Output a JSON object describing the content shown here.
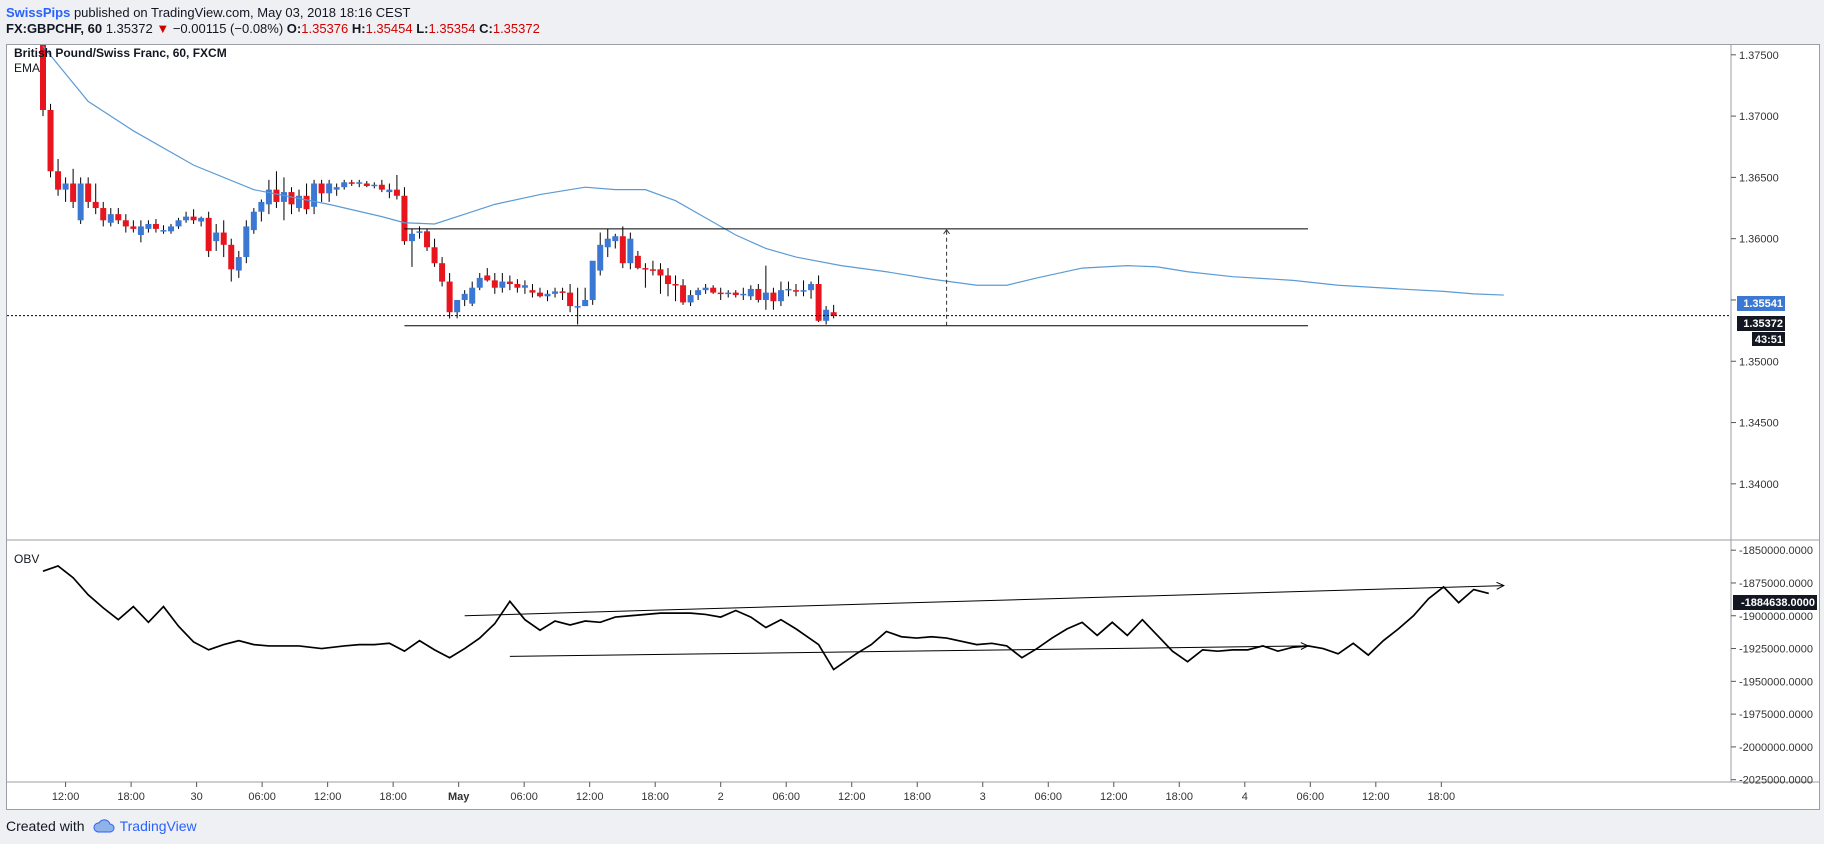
{
  "header": {
    "author": "SwissPips",
    "published": "published on TradingView.com, May 03, 2018 18:16 CEST"
  },
  "quote": {
    "symbol": "FX:GBPCHF, 60",
    "last": "1.35372",
    "change": "−0.00115 (−0.08%)",
    "o_label": "O:",
    "o": "1.35376",
    "h_label": "H:",
    "h": "1.35454",
    "l_label": "L:",
    "l": "1.35354",
    "c_label": "C:",
    "c": "1.35372"
  },
  "chart_title": "British Pound/Swiss Franc, 60, FXCM",
  "ema_label": "EMA",
  "obv_label": "OBV",
  "badges": {
    "ema_value": "1.35541",
    "price_value": "1.35372",
    "countdown": "43:51",
    "obv_value": "-1884638.0000"
  },
  "colors": {
    "up": "#3a78d4",
    "down": "#e8141e",
    "ema": "#5b9bd5",
    "badge_blue": "#3a78d4",
    "badge_dark": "#131722"
  },
  "footer": {
    "created": "Created with",
    "brand": "TradingView"
  },
  "chart_data": [
    {
      "type": "candlestick",
      "title": "British Pound/Swiss Franc, 60, FXCM",
      "ylim": [
        1.3355,
        1.3758
      ],
      "yticks": [
        "1.37500",
        "1.37000",
        "1.36500",
        "1.36000",
        "1.35500",
        "1.35000",
        "1.34500",
        "1.34000"
      ],
      "xticks": [
        "12:00",
        "18:00",
        "30",
        "06:00",
        "12:00",
        "18:00",
        "May",
        "06:00",
        "12:00",
        "18:00",
        "2",
        "06:00",
        "12:00",
        "18:00",
        "3",
        "06:00",
        "12:00",
        "18:00",
        "4",
        "06:00",
        "12:00",
        "18:00"
      ],
      "candles": [
        [
          1.3775,
          1.378,
          1.37,
          1.3705
        ],
        [
          1.3705,
          1.371,
          1.365,
          1.3655
        ],
        [
          1.3655,
          1.3665,
          1.3635,
          1.364
        ],
        [
          1.364,
          1.365,
          1.363,
          1.3645
        ],
        [
          1.3645,
          1.3657,
          1.3625,
          1.363
        ],
        [
          1.3615,
          1.365,
          1.3612,
          1.3645
        ],
        [
          1.3645,
          1.365,
          1.3625,
          1.363
        ],
        [
          1.363,
          1.3645,
          1.362,
          1.3625
        ],
        [
          1.3625,
          1.363,
          1.361,
          1.3615
        ],
        [
          1.3613,
          1.3625,
          1.361,
          1.362
        ],
        [
          1.362,
          1.3625,
          1.3612,
          1.3615
        ],
        [
          1.3615,
          1.362,
          1.3605,
          1.361
        ],
        [
          1.361,
          1.3615,
          1.3605,
          1.3608
        ],
        [
          1.3603,
          1.3615,
          1.3597,
          1.361
        ],
        [
          1.3608,
          1.3615,
          1.3605,
          1.3612
        ],
        [
          1.3612,
          1.3616,
          1.3605,
          1.3608
        ],
        [
          1.3606,
          1.3611,
          1.3604,
          1.3607
        ],
        [
          1.3606,
          1.3612,
          1.3604,
          1.361
        ],
        [
          1.361,
          1.3617,
          1.3608,
          1.3615
        ],
        [
          1.3615,
          1.3622,
          1.3613,
          1.3618
        ],
        [
          1.3618,
          1.3624,
          1.3612,
          1.3615
        ],
        [
          1.3614,
          1.3618,
          1.361,
          1.3617
        ],
        [
          1.3617,
          1.3622,
          1.3585,
          1.359
        ],
        [
          1.3598,
          1.3612,
          1.359,
          1.3605
        ],
        [
          1.3605,
          1.3615,
          1.3585,
          1.3595
        ],
        [
          1.3595,
          1.36,
          1.3565,
          1.3575
        ],
        [
          1.3574,
          1.359,
          1.3568,
          1.3585
        ],
        [
          1.3585,
          1.3615,
          1.358,
          1.361
        ],
        [
          1.3607,
          1.3625,
          1.3604,
          1.3622
        ],
        [
          1.3622,
          1.3632,
          1.3614,
          1.363
        ],
        [
          1.3628,
          1.3648,
          1.362,
          1.364
        ],
        [
          1.364,
          1.3655,
          1.3625,
          1.363
        ],
        [
          1.363,
          1.365,
          1.3615,
          1.3638
        ],
        [
          1.3638,
          1.3642,
          1.362,
          1.3628
        ],
        [
          1.3625,
          1.364,
          1.3622,
          1.3635
        ],
        [
          1.3635,
          1.3645,
          1.362,
          1.3624
        ],
        [
          1.3626,
          1.3648,
          1.362,
          1.3645
        ],
        [
          1.3645,
          1.3648,
          1.363,
          1.3637
        ],
        [
          1.3637,
          1.3648,
          1.363,
          1.3645
        ],
        [
          1.364,
          1.3645,
          1.3635,
          1.3642
        ],
        [
          1.3642,
          1.3648,
          1.364,
          1.3646
        ],
        [
          1.3646,
          1.3648,
          1.3643,
          1.3645
        ],
        [
          1.3645,
          1.3648,
          1.3642,
          1.3646
        ],
        [
          1.3645,
          1.3647,
          1.3642,
          1.3643
        ],
        [
          1.3643,
          1.3646,
          1.3641,
          1.3644
        ],
        [
          1.3644,
          1.3648,
          1.3638,
          1.364
        ],
        [
          1.3638,
          1.3645,
          1.3633,
          1.364
        ],
        [
          1.364,
          1.3652,
          1.3632,
          1.3635
        ],
        [
          1.3635,
          1.3642,
          1.3595,
          1.3598
        ],
        [
          1.3598,
          1.3608,
          1.3577,
          1.3604
        ],
        [
          1.3605,
          1.361,
          1.36,
          1.3606
        ],
        [
          1.3606,
          1.3608,
          1.359,
          1.3593
        ],
        [
          1.3593,
          1.36,
          1.3577,
          1.358
        ],
        [
          1.358,
          1.3585,
          1.3561,
          1.3565
        ],
        [
          1.3565,
          1.3572,
          1.3535,
          1.354
        ],
        [
          1.354,
          1.355,
          1.3535,
          1.355
        ],
        [
          1.355,
          1.3558,
          1.3545,
          1.3555
        ],
        [
          1.3547,
          1.3565,
          1.3545,
          1.356
        ],
        [
          1.356,
          1.3572,
          1.3558,
          1.3568
        ],
        [
          1.357,
          1.3576,
          1.3565,
          1.3566
        ],
        [
          1.3566,
          1.3572,
          1.3555,
          1.356
        ],
        [
          1.356,
          1.3572,
          1.3556,
          1.3565
        ],
        [
          1.3565,
          1.357,
          1.3558,
          1.3563
        ],
        [
          1.3563,
          1.3567,
          1.3556,
          1.356
        ],
        [
          1.356,
          1.3566,
          1.3555,
          1.3562
        ],
        [
          1.3558,
          1.3563,
          1.3552,
          1.3556
        ],
        [
          1.3556,
          1.356,
          1.3552,
          1.3553
        ],
        [
          1.3553,
          1.3558,
          1.3549,
          1.3555
        ],
        [
          1.3555,
          1.356,
          1.3552,
          1.3557
        ],
        [
          1.3557,
          1.356,
          1.355,
          1.3556
        ],
        [
          1.3556,
          1.3563,
          1.354,
          1.3545
        ],
        [
          1.3545,
          1.356,
          1.353,
          1.3545
        ],
        [
          1.3545,
          1.356,
          1.3545,
          1.355
        ],
        [
          1.355,
          1.358,
          1.3546,
          1.3582
        ],
        [
          1.3574,
          1.3605,
          1.357,
          1.3595
        ],
        [
          1.3593,
          1.3608,
          1.3585,
          1.36
        ],
        [
          1.3598,
          1.3604,
          1.3592,
          1.3602
        ],
        [
          1.3602,
          1.361,
          1.3576,
          1.358
        ],
        [
          1.358,
          1.3605,
          1.3575,
          1.36
        ],
        [
          1.3586,
          1.359,
          1.3575,
          1.3576
        ],
        [
          1.3576,
          1.358,
          1.356,
          1.3575
        ],
        [
          1.3575,
          1.3582,
          1.357,
          1.3574
        ],
        [
          1.3575,
          1.358,
          1.3555,
          1.357
        ],
        [
          1.357,
          1.3576,
          1.3553,
          1.3563
        ],
        [
          1.3563,
          1.357,
          1.3549,
          1.3562
        ],
        [
          1.3562,
          1.3567,
          1.3546,
          1.3548
        ],
        [
          1.3548,
          1.3558,
          1.3545,
          1.3554
        ],
        [
          1.3554,
          1.356,
          1.355,
          1.3558
        ],
        [
          1.3558,
          1.3563,
          1.3555,
          1.356
        ],
        [
          1.356,
          1.3562,
          1.3555,
          1.3556
        ],
        [
          1.3556,
          1.356,
          1.355,
          1.3555
        ],
        [
          1.3555,
          1.3558,
          1.3552,
          1.3556
        ],
        [
          1.3556,
          1.3558,
          1.3552,
          1.3554
        ],
        [
          1.3554,
          1.356,
          1.355,
          1.3555
        ],
        [
          1.3553,
          1.3562,
          1.355,
          1.3559
        ],
        [
          1.3559,
          1.3563,
          1.3548,
          1.355
        ],
        [
          1.355,
          1.3578,
          1.3542,
          1.3556
        ],
        [
          1.3556,
          1.356,
          1.3542,
          1.3549
        ],
        [
          1.3549,
          1.3565,
          1.3545,
          1.3558
        ],
        [
          1.3558,
          1.3565,
          1.3553,
          1.3559
        ],
        [
          1.3558,
          1.3563,
          1.3553,
          1.3557
        ],
        [
          1.3557,
          1.3566,
          1.3553,
          1.3558
        ],
        [
          1.3558,
          1.3565,
          1.3551,
          1.3563
        ],
        [
          1.3563,
          1.357,
          1.3532,
          1.3533
        ],
        [
          1.3533,
          1.3545,
          1.353,
          1.3542
        ],
        [
          1.354,
          1.3546,
          1.3535,
          1.3537
        ]
      ],
      "ema": [
        [
          0,
          1.3757
        ],
        [
          6,
          1.3712
        ],
        [
          12,
          1.3688
        ],
        [
          20,
          1.366
        ],
        [
          28,
          1.364
        ],
        [
          38,
          1.3628
        ],
        [
          45,
          1.3618
        ],
        [
          48,
          1.3613
        ],
        [
          52,
          1.3612
        ],
        [
          56,
          1.362
        ],
        [
          60,
          1.3628
        ],
        [
          66,
          1.3636
        ],
        [
          72,
          1.3642
        ],
        [
          76,
          1.364
        ],
        [
          80,
          1.364
        ],
        [
          84,
          1.3631
        ],
        [
          88,
          1.3617
        ],
        [
          92,
          1.3603
        ],
        [
          96,
          1.3592
        ],
        [
          100,
          1.3585
        ],
        [
          106,
          1.3578
        ],
        [
          112,
          1.3573
        ],
        [
          118,
          1.3567
        ],
        [
          124,
          1.3562
        ],
        [
          128,
          1.3562
        ],
        [
          132,
          1.3568
        ],
        [
          138,
          1.3576
        ],
        [
          144,
          1.3578
        ],
        [
          148,
          1.3577
        ],
        [
          152,
          1.3573
        ],
        [
          158,
          1.3569
        ],
        [
          166,
          1.3566
        ],
        [
          172,
          1.3562
        ],
        [
          180,
          1.3559
        ],
        [
          186,
          1.3557
        ],
        [
          190,
          1.3555
        ],
        [
          194,
          1.3554
        ]
      ],
      "resistance": 1.3608,
      "support": 1.3529,
      "last_price": 1.35372
    },
    {
      "type": "line",
      "title": "OBV",
      "ylim": [
        -2026000,
        -1843000
      ],
      "yticks": [
        "-1850000.0000",
        "-1875000.0000",
        "-1900000.0000",
        "-1925000.0000",
        "-1950000.0000",
        "-1975000.0000",
        "-2000000.0000",
        "-2025000.0000"
      ],
      "values": [
        [
          0,
          -1866000
        ],
        [
          2,
          -1862000
        ],
        [
          4,
          -1871000
        ],
        [
          6,
          -1884000
        ],
        [
          8,
          -1894000
        ],
        [
          10,
          -1903000
        ],
        [
          12,
          -1893000
        ],
        [
          14,
          -1905000
        ],
        [
          16,
          -1893000
        ],
        [
          18,
          -1908000
        ],
        [
          20,
          -1920000
        ],
        [
          22,
          -1926000
        ],
        [
          24,
          -1922000
        ],
        [
          26,
          -1919000
        ],
        [
          28,
          -1922000
        ],
        [
          30,
          -1923000
        ],
        [
          34,
          -1923000
        ],
        [
          37,
          -1925000
        ],
        [
          40,
          -1923000
        ],
        [
          42,
          -1922000
        ],
        [
          44,
          -1922000
        ],
        [
          46,
          -1921000
        ],
        [
          48,
          -1927000
        ],
        [
          50,
          -1919000
        ],
        [
          52,
          -1926000
        ],
        [
          54,
          -1932000
        ],
        [
          56,
          -1925000
        ],
        [
          58,
          -1917000
        ],
        [
          60,
          -1906000
        ],
        [
          62,
          -1889000
        ],
        [
          64,
          -1903000
        ],
        [
          66,
          -1911000
        ],
        [
          68,
          -1904000
        ],
        [
          70,
          -1907000
        ],
        [
          72,
          -1904000
        ],
        [
          74,
          -1905000
        ],
        [
          76,
          -1901000
        ],
        [
          78,
          -1900000
        ],
        [
          82,
          -1898000
        ],
        [
          86,
          -1898000
        ],
        [
          88,
          -1899000
        ],
        [
          90,
          -1901000
        ],
        [
          92,
          -1896000
        ],
        [
          94,
          -1901000
        ],
        [
          96,
          -1909000
        ],
        [
          98,
          -1903000
        ],
        [
          100,
          -1910000
        ],
        [
          103,
          -1922000
        ],
        [
          105,
          -1941000
        ],
        [
          108,
          -1929000
        ],
        [
          110,
          -1922000
        ],
        [
          112,
          -1912000
        ],
        [
          114,
          -1916000
        ],
        [
          116,
          -1917000
        ],
        [
          118,
          -1916000
        ],
        [
          120,
          -1917000
        ],
        [
          124,
          -1922000
        ],
        [
          126,
          -1921000
        ],
        [
          128,
          -1923000
        ],
        [
          130,
          -1932000
        ],
        [
          132,
          -1925000
        ],
        [
          134,
          -1917000
        ],
        [
          136,
          -1910000
        ],
        [
          138,
          -1905000
        ],
        [
          140,
          -1915000
        ],
        [
          142,
          -1905000
        ],
        [
          144,
          -1915000
        ],
        [
          146,
          -1903000
        ],
        [
          148,
          -1915000
        ],
        [
          150,
          -1927000
        ],
        [
          152,
          -1935000
        ],
        [
          154,
          -1926000
        ],
        [
          156,
          -1927000
        ],
        [
          158,
          -1926000
        ],
        [
          160,
          -1926000
        ],
        [
          162,
          -1923000
        ],
        [
          164,
          -1927000
        ],
        [
          166,
          -1924000
        ],
        [
          168,
          -1923000
        ],
        [
          170,
          -1925000
        ],
        [
          172,
          -1929000
        ],
        [
          174,
          -1921000
        ],
        [
          176,
          -1930000
        ],
        [
          178,
          -1919000
        ],
        [
          180,
          -1910000
        ],
        [
          182,
          -1900000
        ],
        [
          184,
          -1887000
        ],
        [
          186,
          -1878000
        ],
        [
          188,
          -1890000
        ],
        [
          190,
          -1880000
        ],
        [
          192,
          -1883000
        ]
      ],
      "trendline_upper": [
        [
          56,
          -1900000
        ],
        [
          194,
          -1877000
        ]
      ],
      "trendline_lower": [
        [
          62,
          -1931000
        ],
        [
          168,
          -1923000
        ]
      ]
    }
  ]
}
